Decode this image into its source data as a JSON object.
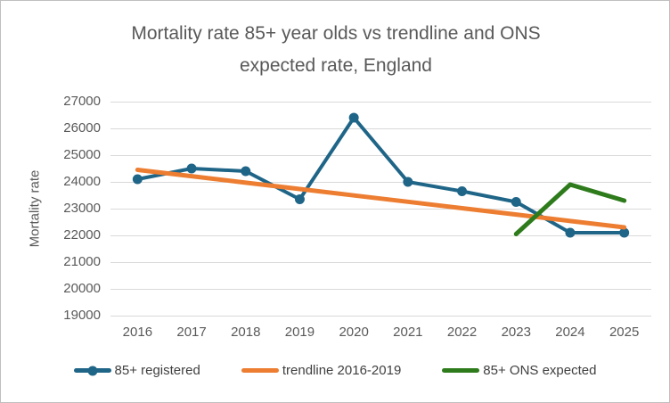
{
  "window": {
    "background": "#ffffff",
    "border_color": "#bfbfbf"
  },
  "chart_data": {
    "type": "line",
    "title": "Mortality rate 85+ year olds vs trendline and ONS expected rate, England",
    "title_lines": [
      "Mortality rate 85+ year olds vs trendline and ONS",
      "expected rate, England"
    ],
    "xlabel": "",
    "ylabel": "Mortality rate",
    "categories": [
      "2016",
      "2017",
      "2018",
      "2019",
      "2020",
      "2021",
      "2022",
      "2023",
      "2024",
      "2025"
    ],
    "ylim": [
      19000,
      27000
    ],
    "yticks": [
      27000,
      26000,
      25000,
      24000,
      23000,
      22000,
      21000,
      20000,
      19000
    ],
    "grid": "horizontal-only",
    "gridline_color": "#d9d9d9",
    "axis_text_color": "#595959",
    "legend_position": "bottom",
    "series": [
      {
        "name": "85+ registered",
        "color": "#1f6587",
        "marker": "circle",
        "line_width": 4,
        "values": [
          24100,
          24500,
          24400,
          23350,
          26400,
          24000,
          23650,
          23250,
          22100,
          22100
        ]
      },
      {
        "name": "trendline 2016-2019",
        "color": "#ed7d31",
        "marker": "none",
        "line_width": 5,
        "values": [
          24450,
          24211,
          23972,
          23733,
          23494,
          23256,
          23017,
          22778,
          22539,
          22300
        ]
      },
      {
        "name": "85+ ONS expected",
        "color": "#2e7b1c",
        "marker": "none",
        "line_width": 5,
        "values": [
          null,
          null,
          null,
          null,
          null,
          null,
          null,
          22050,
          23900,
          23300
        ]
      }
    ]
  }
}
